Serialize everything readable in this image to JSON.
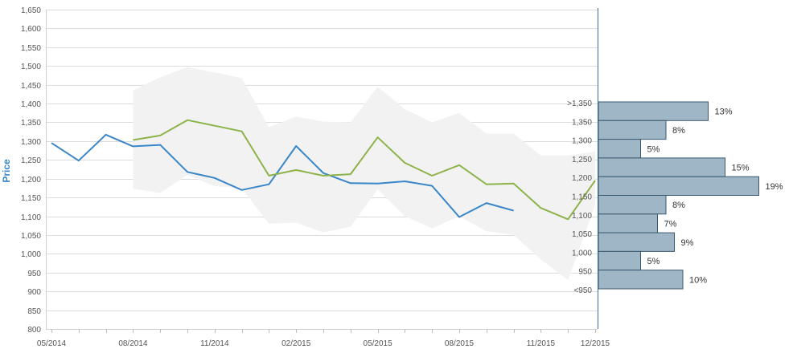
{
  "chart_data": {
    "type": "line",
    "ylabel": "Price",
    "ylim": [
      800,
      1650
    ],
    "y_ticks": [
      "1,650",
      "1,600",
      "1,550",
      "1,500",
      "1,450",
      "1,400",
      "1,350",
      "1,300",
      "1,250",
      "1,200",
      "1,150",
      "1,100",
      "1,050",
      "1,000",
      "950",
      "900",
      "850",
      "800"
    ],
    "x_ticks": [
      "05/2014",
      "08/2014",
      "11/2014",
      "02/2015",
      "05/2015",
      "08/2015",
      "11/2015",
      "12/2015"
    ],
    "x_ticks_month_index": [
      0,
      3,
      6,
      9,
      12,
      15,
      18,
      20
    ],
    "grid": true,
    "series": [
      {
        "color": "#3a86c8",
        "x": [
          0,
          1,
          2,
          3,
          4,
          5,
          6,
          7,
          8,
          9,
          10,
          11,
          12,
          13,
          14,
          15,
          16,
          17
        ],
        "values": [
          1295,
          1248,
          1317,
          1286,
          1290,
          1218,
          1202,
          1170,
          1185,
          1287,
          1215,
          1188,
          1187,
          1193,
          1181,
          1098,
          1135,
          1115
        ]
      },
      {
        "color": "#8db34a",
        "x": [
          3,
          4,
          5,
          6,
          7,
          8,
          9,
          10,
          11,
          12,
          13,
          14,
          15,
          16,
          17,
          18,
          19,
          20
        ],
        "values": [
          1303,
          1315,
          1356,
          1341,
          1326,
          1208,
          1223,
          1208,
          1212,
          1310,
          1242,
          1208,
          1236,
          1185,
          1187,
          1122,
          1092,
          1195
        ]
      }
    ],
    "range_band": {
      "color": "#f2f2f2",
      "x": [
        3,
        4,
        5,
        6,
        7,
        8,
        9,
        10,
        11,
        12,
        13,
        14,
        15,
        16,
        17,
        18,
        19,
        20
      ],
      "upper": [
        1435,
        1470,
        1497,
        1483,
        1468,
        1337,
        1365,
        1352,
        1350,
        1445,
        1385,
        1350,
        1375,
        1320,
        1320,
        1262,
        1262,
        1272
      ],
      "lower": [
        1173,
        1162,
        1210,
        1180,
        1175,
        1080,
        1083,
        1057,
        1072,
        1172,
        1100,
        1068,
        1100,
        1060,
        1050,
        985,
        930,
        1130
      ]
    },
    "histogram": {
      "color": "#9fb6c6",
      "border": "#3a5a72",
      "bins": [
        {
          "label": ">1,350",
          "pct": 13,
          "text": "13%"
        },
        {
          "label": "1,350",
          "pct": 8,
          "text": "8%"
        },
        {
          "label": "1,300",
          "pct": 5,
          "text": "5%"
        },
        {
          "label": "1,250",
          "pct": 15,
          "text": "15%"
        },
        {
          "label": "1,200",
          "pct": 19,
          "text": "19%"
        },
        {
          "label": "1,150",
          "pct": 8,
          "text": "8%"
        },
        {
          "label": "1,100",
          "pct": 7,
          "text": "7%"
        },
        {
          "label": "1,050",
          "pct": 9,
          "text": "9%"
        },
        {
          "label": "1,000",
          "pct": 5,
          "text": "5%"
        },
        {
          "label": "950",
          "pct": 10,
          "text": "10%"
        }
      ],
      "extra_label": "<950"
    }
  }
}
